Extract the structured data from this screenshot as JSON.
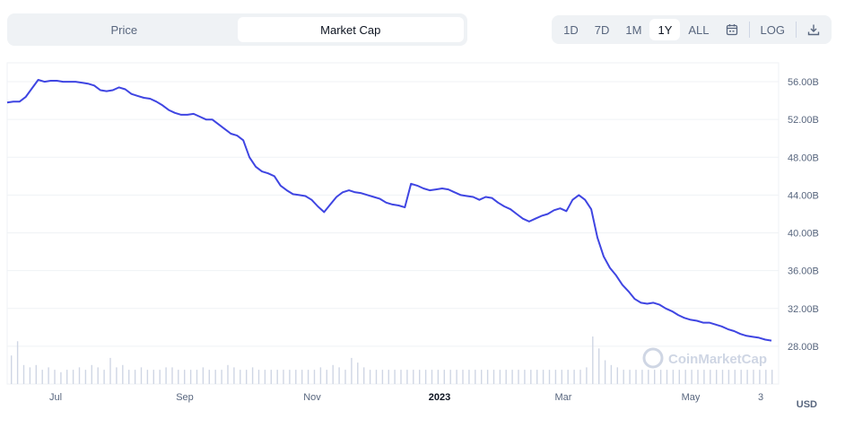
{
  "tabs": {
    "price": "Price",
    "market_cap": "Market Cap",
    "active": "market_cap"
  },
  "ranges": [
    "1D",
    "7D",
    "1M",
    "1Y",
    "ALL"
  ],
  "active_range": "1Y",
  "log_label": "LOG",
  "icons": {
    "calendar": "calendar-icon",
    "download": "download-icon"
  },
  "currency": "USD",
  "watermark": "CoinMarketCap",
  "colors": {
    "line": "#3f45e2",
    "grid": "#eff2f5",
    "volume": "#cfd6e4",
    "watermark": "#cfd6e4"
  },
  "chart_data": {
    "type": "line",
    "title": "",
    "ylabel": "",
    "y_unit": "B",
    "ylim": [
      24,
      58
    ],
    "y_ticks": [
      "56.00B",
      "52.00B",
      "48.00B",
      "44.00B",
      "40.00B",
      "36.00B",
      "32.00B",
      "28.00B"
    ],
    "y_tick_values": [
      56,
      52,
      48,
      44,
      40,
      36,
      32,
      28
    ],
    "x_ticks": [
      "Jul",
      "Sep",
      "Nov",
      "2023",
      "Mar",
      "May",
      "3"
    ],
    "x_tick_bold": [
      false,
      false,
      false,
      true,
      false,
      false,
      false
    ],
    "grid": true,
    "series": [
      {
        "values": [
          53.8,
          53.9,
          53.9,
          54.4,
          55.3,
          56.2,
          56.0,
          56.1,
          56.1,
          56.0,
          56.0,
          56.0,
          55.9,
          55.8,
          55.6,
          55.1,
          55.0,
          55.1,
          55.4,
          55.2,
          54.7,
          54.5,
          54.3,
          54.2,
          53.9,
          53.5,
          53.0,
          52.7,
          52.5,
          52.5,
          52.6,
          52.3,
          52.0,
          52.0,
          51.5,
          51.0,
          50.5,
          50.3,
          49.8,
          48.0,
          47.0,
          46.5,
          46.3,
          46.0,
          45.0,
          44.5,
          44.1,
          44.0,
          43.9,
          43.5,
          42.8,
          42.2,
          43.0,
          43.8,
          44.3,
          44.5,
          44.3,
          44.2,
          44.0,
          43.8,
          43.6,
          43.2,
          43.0,
          42.9,
          42.7,
          45.2,
          45.0,
          44.7,
          44.5,
          44.6,
          44.7,
          44.6,
          44.3,
          44.0,
          43.9,
          43.8,
          43.5,
          43.8,
          43.7,
          43.2,
          42.8,
          42.5,
          42.0,
          41.5,
          41.2,
          41.5,
          41.8,
          42.0,
          42.4,
          42.6,
          42.3,
          43.5,
          44.0,
          43.5,
          42.5,
          39.5,
          37.5,
          36.3,
          35.5,
          34.5,
          33.8,
          33.0,
          32.6,
          32.5,
          32.6,
          32.4,
          32.0,
          31.7,
          31.3,
          31.0,
          30.8,
          30.7,
          30.5,
          30.5,
          30.3,
          30.1,
          29.8,
          29.6,
          29.3,
          29.1,
          29.0,
          28.9,
          28.7,
          28.6
        ]
      }
    ],
    "volume": [
      0.6,
      0.9,
      0.4,
      0.35,
      0.4,
      0.3,
      0.35,
      0.3,
      0.25,
      0.3,
      0.3,
      0.35,
      0.3,
      0.4,
      0.35,
      0.3,
      0.55,
      0.35,
      0.4,
      0.3,
      0.3,
      0.35,
      0.3,
      0.3,
      0.3,
      0.35,
      0.35,
      0.3,
      0.3,
      0.3,
      0.3,
      0.35,
      0.3,
      0.3,
      0.3,
      0.4,
      0.35,
      0.3,
      0.3,
      0.35,
      0.3,
      0.3,
      0.3,
      0.3,
      0.3,
      0.3,
      0.3,
      0.3,
      0.3,
      0.3,
      0.35,
      0.3,
      0.4,
      0.35,
      0.3,
      0.55,
      0.45,
      0.35,
      0.3,
      0.3,
      0.3,
      0.3,
      0.3,
      0.3,
      0.3,
      0.3,
      0.3,
      0.3,
      0.3,
      0.3,
      0.3,
      0.3,
      0.3,
      0.3,
      0.3,
      0.3,
      0.3,
      0.3,
      0.3,
      0.3,
      0.3,
      0.3,
      0.3,
      0.3,
      0.3,
      0.3,
      0.3,
      0.3,
      0.3,
      0.3,
      0.3,
      0.3,
      0.3,
      0.35,
      1.0,
      0.75,
      0.5,
      0.4,
      0.35,
      0.3,
      0.3,
      0.3,
      0.3,
      0.3,
      0.3,
      0.3,
      0.3,
      0.3,
      0.3,
      0.3,
      0.3,
      0.3,
      0.3,
      0.3,
      0.3,
      0.3,
      0.3,
      0.3,
      0.3,
      0.3,
      0.3,
      0.3,
      0.3,
      0.3
    ]
  }
}
